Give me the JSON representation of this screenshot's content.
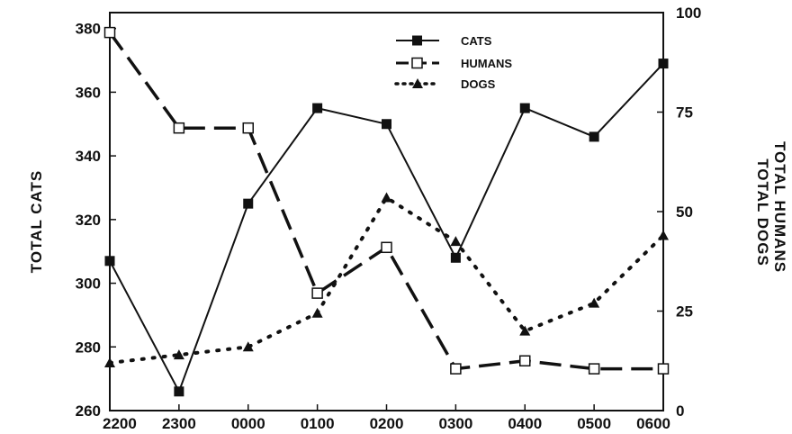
{
  "chart_data": {
    "type": "line",
    "categories": [
      "2200",
      "2300",
      "0000",
      "0100",
      "0200",
      "0300",
      "0400",
      "0500",
      "0600"
    ],
    "y_left": {
      "label": "TOTAL CATS",
      "range": [
        260,
        385
      ],
      "ticks": [
        260,
        280,
        300,
        320,
        340,
        360,
        380
      ]
    },
    "y_right": {
      "labels": [
        "TOTAL HUMANS",
        "TOTAL DOGS"
      ],
      "range": [
        0,
        100
      ],
      "ticks": [
        0,
        25,
        50,
        75,
        100
      ]
    },
    "series": [
      {
        "name": "CATS",
        "axis": "left",
        "style": "solid",
        "marker": "filled-square",
        "values": [
          307,
          266,
          325,
          355,
          350,
          308,
          355,
          346,
          369
        ]
      },
      {
        "name": "HUMANS",
        "axis": "right",
        "style": "dashed",
        "marker": "open-square",
        "values": [
          95,
          71,
          71,
          29.5,
          41,
          10.5,
          12.5,
          10.5,
          10.5
        ]
      },
      {
        "name": "DOGS",
        "axis": "right",
        "style": "dotted",
        "marker": "filled-triangle",
        "values": [
          12,
          14,
          16,
          24.5,
          53.5,
          42.5,
          20,
          27,
          44
        ]
      }
    ],
    "legend": {
      "position": "top-right",
      "entries": [
        "CATS",
        "HUMANS",
        "DOGS"
      ]
    },
    "grid": false
  }
}
